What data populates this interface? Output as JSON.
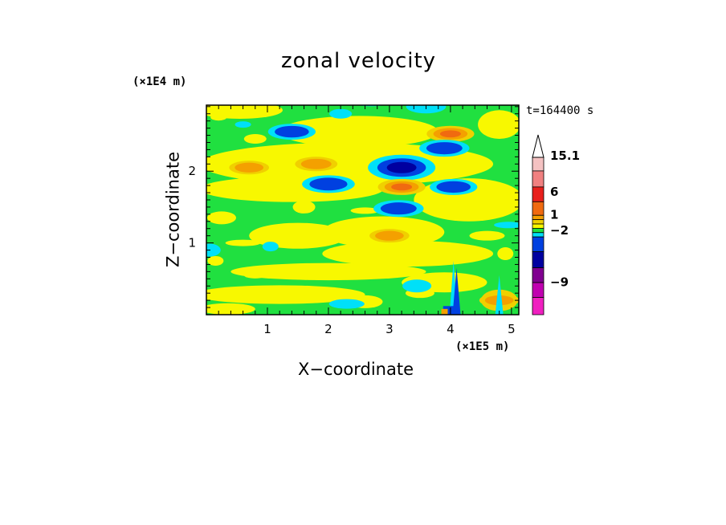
{
  "chart_data": {
    "type": "heatmap",
    "title": "zonal velocity",
    "xlabel": "X−coordinate",
    "ylabel": "Z−coordinate",
    "x_scale_label": "(×1E5 m)",
    "y_scale_label": "(×1E4 m)",
    "time_label": "t=164400 s",
    "xlim": [
      0,
      5.12
    ],
    "ylim": [
      0,
      2.92
    ],
    "x_ticks": [
      "1",
      "2",
      "3",
      "4",
      "5"
    ],
    "y_ticks": [
      "1",
      "2"
    ],
    "colorbar": {
      "labels": [
        "15.1",
        "6",
        "1",
        "−2",
        "−9"
      ],
      "colors_top_to_bottom": [
        "#f4c2c2",
        "#f08080",
        "#e8201c",
        "#f06a10",
        "#f4a000",
        "#f0d000",
        "#f8f800",
        "#20e040",
        "#00e0f8",
        "#0040e0",
        "#0000a0",
        "#800090",
        "#c000b0",
        "#f020c0"
      ]
    },
    "field_levels": {
      "background": "#20e040",
      "colors": {
        "yellow": "#f8f800",
        "light_orange": "#f0d000",
        "orange": "#f4a000",
        "deep_orange": "#f06a10",
        "cyan": "#00e0f8",
        "blue": "#0040e0",
        "navy": "#0000a0"
      }
    },
    "features": [
      {
        "x": 3.2,
        "z": 2.05,
        "u": -12,
        "shape": "jet"
      },
      {
        "x": 1.4,
        "z": 2.55,
        "u": -6
      },
      {
        "x": 1.8,
        "z": 2.1,
        "u": 4
      },
      {
        "x": 0.7,
        "z": 2.05,
        "u": 3
      },
      {
        "x": 4.0,
        "z": 2.52,
        "u": 6
      },
      {
        "x": 3.9,
        "z": 2.32,
        "u": -7
      },
      {
        "x": 3.2,
        "z": 1.78,
        "u": 6
      },
      {
        "x": 2.0,
        "z": 1.82,
        "u": -8
      },
      {
        "x": 3.15,
        "z": 1.48,
        "u": -7
      },
      {
        "x": 4.05,
        "z": 1.78,
        "u": -6
      },
      {
        "x": 3.0,
        "z": 1.1,
        "u": 3
      },
      {
        "x": 3.6,
        "z": 2.9,
        "u": -3
      },
      {
        "x": 4.8,
        "z": 0.2,
        "u": 3
      }
    ]
  }
}
